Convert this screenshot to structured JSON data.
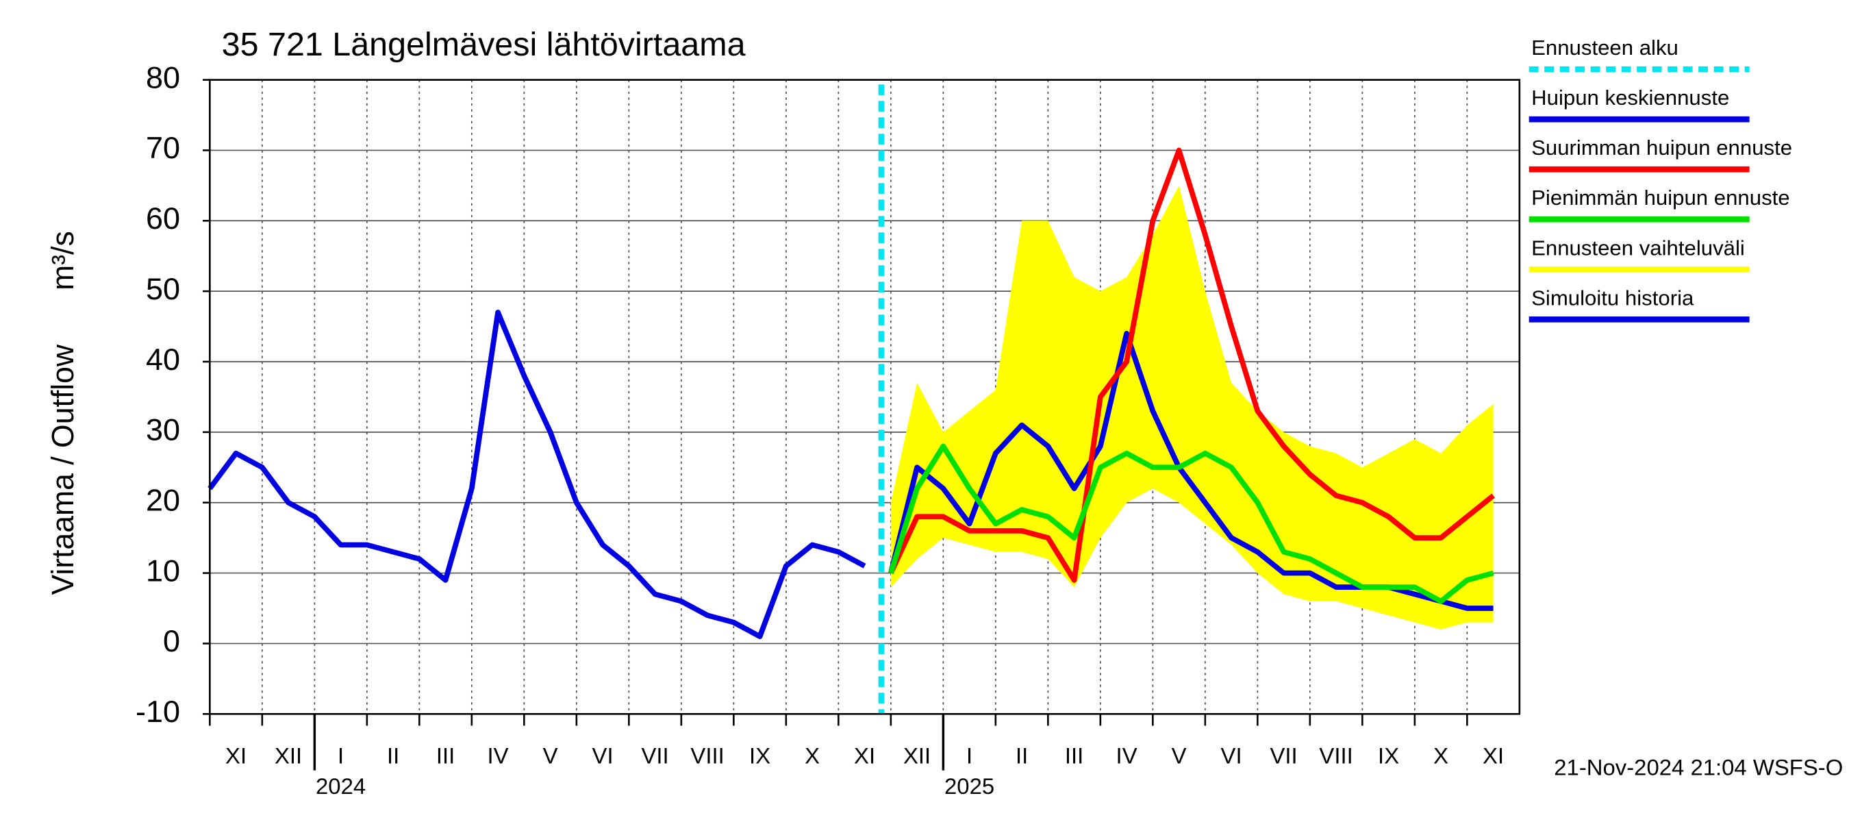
{
  "chart_data": {
    "type": "line",
    "title": "35 721 Längelmävesi lähtövirtaama",
    "y_label": "Virtaama / Outflow",
    "y_unit": "m³/s",
    "timestamp": "21-Nov-2024 21:04 WSFS-O",
    "categories": [
      null,
      "XI",
      null,
      "XII",
      null,
      "I",
      null,
      "II",
      null,
      "III",
      null,
      "IV",
      null,
      "V",
      null,
      "VI",
      null,
      "VII",
      null,
      "VIII",
      null,
      "IX",
      null,
      "X",
      null,
      "XI",
      null,
      "XII",
      null,
      "I",
      null,
      "II",
      null,
      "III",
      null,
      "IV",
      null,
      "V",
      null,
      "VI",
      null,
      "VII",
      null,
      "VIII",
      null,
      "IX",
      null,
      "X",
      null,
      "XI"
    ],
    "year_labels": [
      "2024",
      "2025"
    ],
    "ylim": [
      -10,
      80
    ],
    "yticks": [
      -10,
      0,
      10,
      20,
      30,
      40,
      50,
      60,
      70,
      80
    ],
    "grid": true,
    "forecast_start": {
      "name": "Ennusteen alku",
      "color": "#00e5ee"
    },
    "series": [
      {
        "name": "Huipun keskiennuste",
        "color": "#0000e0",
        "values": [
          null,
          null,
          null,
          null,
          null,
          null,
          null,
          null,
          null,
          null,
          null,
          null,
          null,
          null,
          null,
          null,
          null,
          null,
          null,
          null,
          null,
          null,
          null,
          null,
          null,
          null,
          10,
          25,
          22,
          17,
          27,
          31,
          28,
          22,
          28,
          44,
          33,
          25,
          20,
          15,
          13,
          10,
          10,
          8,
          8,
          8,
          7,
          6,
          5,
          5
        ]
      },
      {
        "name": "Suurimman huipun ennuste",
        "color": "#ff0000",
        "values": [
          null,
          null,
          null,
          null,
          null,
          null,
          null,
          null,
          null,
          null,
          null,
          null,
          null,
          null,
          null,
          null,
          null,
          null,
          null,
          null,
          null,
          null,
          null,
          null,
          null,
          null,
          10,
          18,
          18,
          16,
          16,
          16,
          15,
          9,
          35,
          40,
          60,
          70,
          58,
          45,
          33,
          28,
          24,
          21,
          20,
          18,
          15,
          15,
          18,
          21
        ]
      },
      {
        "name": "Pienimmän huipun ennuste",
        "color": "#00e000",
        "values": [
          null,
          null,
          null,
          null,
          null,
          null,
          null,
          null,
          null,
          null,
          null,
          null,
          null,
          null,
          null,
          null,
          null,
          null,
          null,
          null,
          null,
          null,
          null,
          null,
          null,
          null,
          10,
          22,
          28,
          22,
          17,
          19,
          18,
          15,
          25,
          27,
          25,
          25,
          27,
          25,
          20,
          13,
          12,
          10,
          8,
          8,
          8,
          6,
          9,
          10
        ]
      },
      {
        "name": "Simuloitu historia",
        "color": "#0000e0",
        "values": [
          22,
          27,
          25,
          20,
          18,
          14,
          14,
          13,
          12,
          9,
          22,
          47,
          38,
          30,
          20,
          14,
          11,
          7,
          6,
          4,
          3,
          1,
          11,
          14,
          13,
          11,
          null,
          null,
          null,
          null,
          null,
          null,
          null,
          null,
          null,
          null,
          null,
          null,
          null,
          null,
          null,
          null,
          null,
          null,
          null,
          null,
          null,
          null,
          null,
          null
        ]
      }
    ],
    "band": {
      "name": "Ennusteen vaihteluväli",
      "color": "#ffff00",
      "low": [
        null,
        null,
        null,
        null,
        null,
        null,
        null,
        null,
        null,
        null,
        null,
        null,
        null,
        null,
        null,
        null,
        null,
        null,
        null,
        null,
        null,
        null,
        null,
        null,
        null,
        null,
        8,
        12,
        15,
        14,
        13,
        13,
        12,
        8,
        15,
        20,
        22,
        20,
        17,
        14,
        10,
        7,
        6,
        6,
        5,
        4,
        3,
        2,
        3,
        3
      ],
      "high": [
        null,
        null,
        null,
        null,
        null,
        null,
        null,
        null,
        null,
        null,
        null,
        null,
        null,
        null,
        null,
        null,
        null,
        null,
        null,
        null,
        null,
        null,
        null,
        null,
        null,
        null,
        20,
        37,
        30,
        33,
        36,
        60,
        60,
        52,
        50,
        52,
        58,
        65,
        50,
        37,
        33,
        30,
        28,
        27,
        25,
        27,
        29,
        27,
        31,
        34
      ]
    }
  }
}
